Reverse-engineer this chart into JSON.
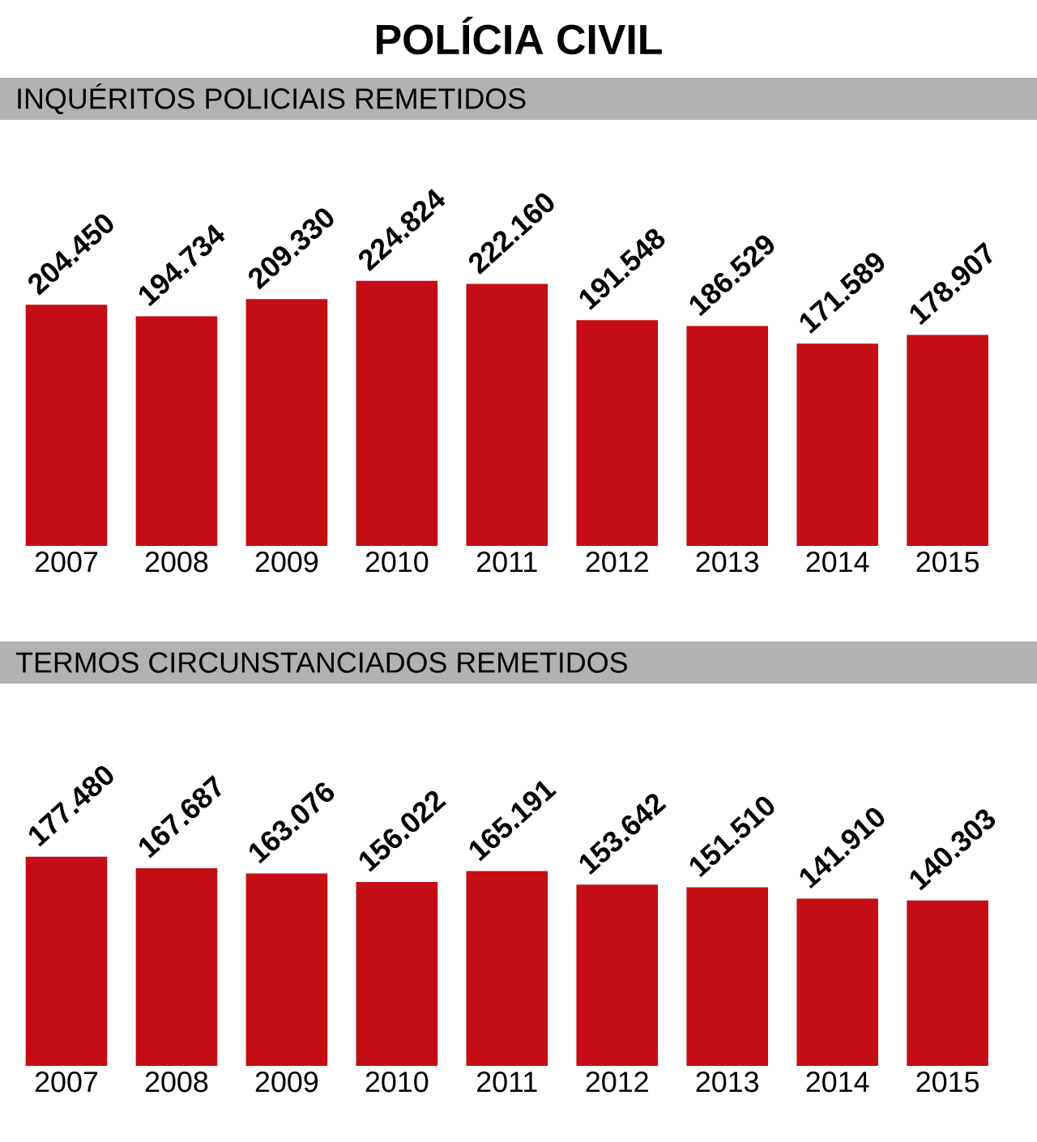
{
  "chart_data": [
    {
      "type": "bar",
      "title": "POLÍCIA CIVIL",
      "subtitle": "INQUÉRITOS POLICIAIS REMETIDOS",
      "categories": [
        "2007",
        "2008",
        "2009",
        "2010",
        "2011",
        "2012",
        "2013",
        "2014",
        "2015"
      ],
      "color": "#c40d14",
      "values": [
        204450,
        194734,
        209330,
        224824,
        222160,
        191548,
        186529,
        171589,
        178907
      ],
      "value_labels": [
        "204.450",
        "194.734",
        "209.330",
        "224.824",
        "222.160",
        "191.548",
        "186.529",
        "171.589",
        "178.907"
      ]
    },
    {
      "type": "bar",
      "subtitle": "TERMOS CIRCUNSTANCIADOS REMETIDOS",
      "categories": [
        "2007",
        "2008",
        "2009",
        "2010",
        "2011",
        "2012",
        "2013",
        "2014",
        "2015"
      ],
      "color": "#c40d14",
      "values": [
        177480,
        167687,
        163076,
        156022,
        165191,
        153642,
        151510,
        141910,
        140303
      ],
      "value_labels": [
        "177.480",
        "167.687",
        "163.076",
        "156.022",
        "165.191",
        "153.642",
        "151.510",
        "141.910",
        "140.303"
      ]
    }
  ]
}
